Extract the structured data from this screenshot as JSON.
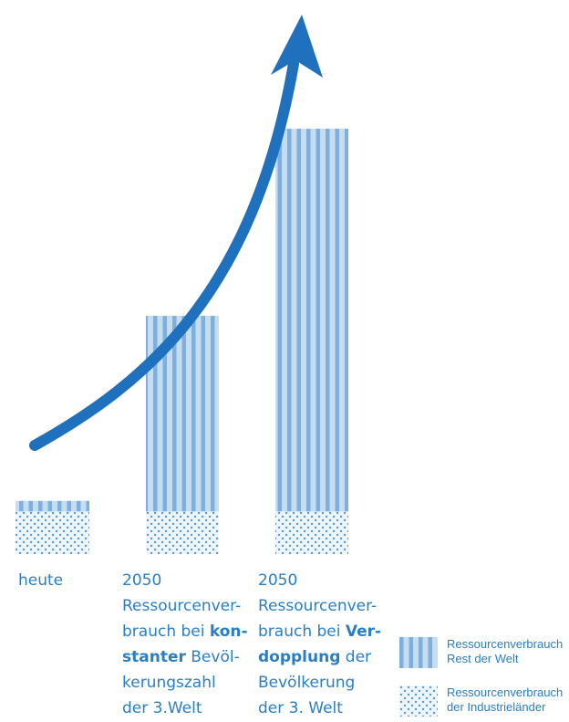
{
  "chart_data": {
    "type": "bar",
    "stacked": true,
    "categories": [
      "heute",
      "2050 (konstante Bevölkerungszahl der 3. Welt)",
      "2050 (Verdopplung der Bevölkerung der 3. Welt)"
    ],
    "series": [
      {
        "name": "Ressourcenverbrauch der Industrieländer",
        "values": [
          1.0,
          1.0,
          1.0
        ],
        "pattern": "dots"
      },
      {
        "name": "Ressourcenverbrauch Rest der Welt",
        "values": [
          0.25,
          4.6,
          9.0
        ],
        "pattern": "stripes"
      }
    ],
    "ylim": [
      0,
      11
    ],
    "axes_visible": false,
    "grid": false,
    "trend_arrow": true,
    "colors": {
      "stripe_light": "#c6dcf0",
      "stripe_dark": "#7fb0dd",
      "dot": "#5a9bd5",
      "dot_bg": "#eef5fb",
      "arrow": "#1f70bd",
      "text": "#2a7fc4"
    }
  },
  "captions": [
    {
      "lines": [
        [
          {
            "t": "heute",
            "b": false
          }
        ]
      ]
    },
    {
      "lines": [
        [
          {
            "t": "2050",
            "b": false
          }
        ],
        [
          {
            "t": "Ressourcenver-",
            "b": false
          }
        ],
        [
          {
            "t": "brauch bei ",
            "b": false
          },
          {
            "t": "kon-",
            "b": true
          }
        ],
        [
          {
            "t": "stanter",
            "b": true
          },
          {
            "t": " Bevöl-",
            "b": false
          }
        ],
        [
          {
            "t": "kerungszahl",
            "b": false
          }
        ],
        [
          {
            "t": "der 3.Welt",
            "b": false
          }
        ]
      ]
    },
    {
      "lines": [
        [
          {
            "t": "2050",
            "b": false
          }
        ],
        [
          {
            "t": "Ressourcenver-",
            "b": false
          }
        ],
        [
          {
            "t": "brauch bei ",
            "b": false
          },
          {
            "t": "Ver-",
            "b": true
          }
        ],
        [
          {
            "t": "dopplung",
            "b": true
          },
          {
            "t": " der",
            "b": false
          }
        ],
        [
          {
            "t": "Bevölkerung",
            "b": false
          }
        ],
        [
          {
            "t": "der 3. Welt",
            "b": false
          }
        ]
      ]
    }
  ],
  "legend": [
    {
      "pattern": "stripes",
      "lines": [
        "Ressourcenverbrauch",
        "Rest der Welt"
      ]
    },
    {
      "pattern": "dots",
      "lines": [
        "Ressourcenverbrauch",
        "der Industrieländer"
      ]
    }
  ]
}
